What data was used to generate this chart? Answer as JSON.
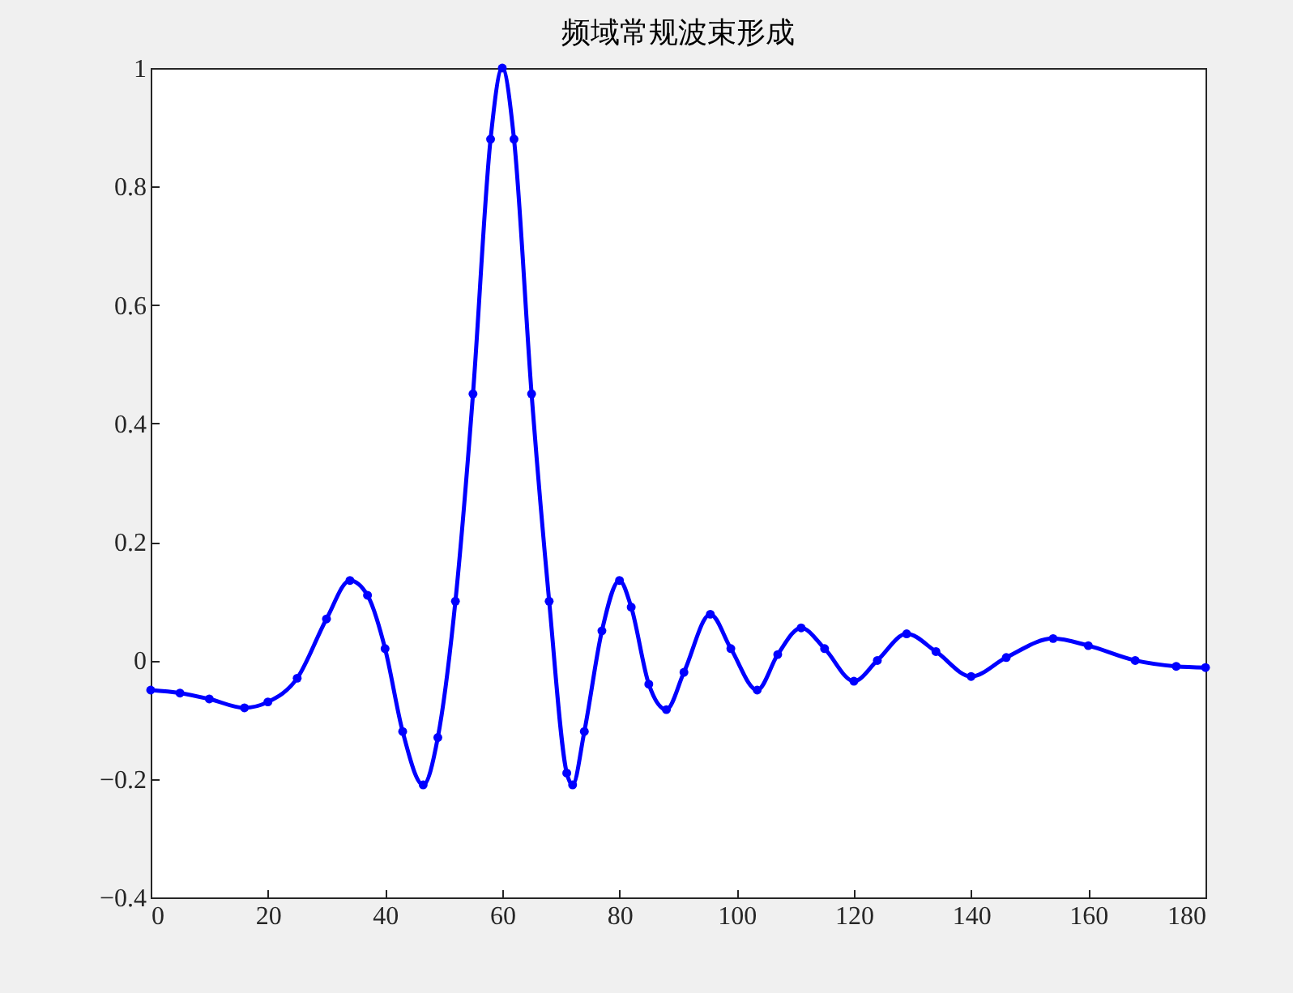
{
  "chart_data": {
    "type": "line",
    "title": "频域常规波束形成",
    "xlim": [
      0,
      180
    ],
    "ylim": [
      -0.4,
      1
    ],
    "xticks": [
      0,
      20,
      40,
      60,
      80,
      100,
      120,
      140,
      160,
      180
    ],
    "yticks": [
      -0.4,
      -0.2,
      0,
      0.2,
      0.4,
      0.6,
      0.8,
      1
    ],
    "grid": false,
    "marker": "circle",
    "line_style": "solid",
    "series": [
      {
        "color": "#0000ff",
        "x": [
          0,
          5,
          10,
          16,
          20,
          25,
          30,
          34,
          37,
          40,
          43,
          46.5,
          49,
          52,
          55,
          58,
          60,
          62,
          65,
          68,
          71,
          72,
          74,
          77,
          80,
          82,
          85,
          88,
          91,
          95.5,
          99,
          103.5,
          107,
          111,
          115,
          120,
          124,
          129,
          134,
          140,
          146,
          154,
          160,
          168,
          175,
          180
        ],
        "values": [
          -0.05,
          -0.055,
          -0.065,
          -0.08,
          -0.07,
          -0.03,
          0.07,
          0.135,
          0.11,
          0.02,
          -0.12,
          -0.21,
          -0.13,
          0.1,
          0.45,
          0.88,
          1.0,
          0.88,
          0.45,
          0.1,
          -0.19,
          -0.21,
          -0.12,
          0.05,
          0.135,
          0.09,
          -0.04,
          -0.083,
          -0.02,
          0.078,
          0.02,
          -0.05,
          0.01,
          0.055,
          0.02,
          -0.035,
          0.0,
          0.045,
          0.015,
          -0.027,
          0.005,
          0.037,
          0.025,
          0.0,
          -0.01,
          -0.012
        ]
      }
    ]
  }
}
